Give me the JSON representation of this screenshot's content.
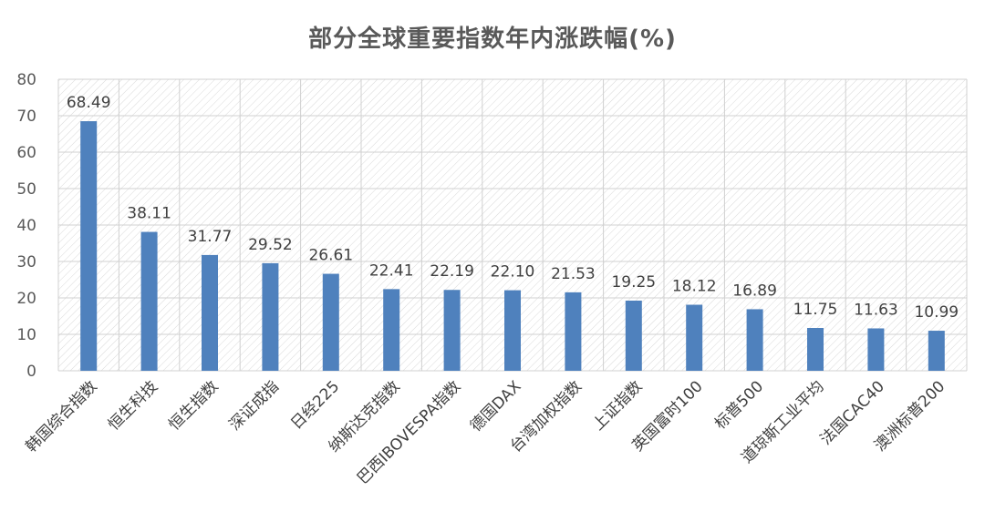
{
  "chart_data": {
    "type": "bar",
    "title": "部分全球重要指数年内涨跌幅(%)",
    "xlabel": "",
    "ylabel": "",
    "ylim": [
      0,
      80
    ],
    "yticks": [
      0,
      10,
      20,
      30,
      40,
      50,
      60,
      70,
      80
    ],
    "grid": true,
    "legend": "none",
    "bar_color": "#4f81bd",
    "categories": [
      "韩国综合指数",
      "恒生科技",
      "恒生指数",
      "深证成指",
      "日经225",
      "纳斯达克指数",
      "巴西IBOVESPA指数",
      "德国DAX",
      "台湾加权指数",
      "上证指数",
      "英国富时100",
      "标普500",
      "道琼斯工业平均",
      "法国CAC40",
      "澳洲标普200"
    ],
    "values": [
      68.49,
      38.11,
      31.77,
      29.52,
      26.61,
      22.41,
      22.19,
      22.1,
      21.53,
      19.25,
      18.12,
      16.89,
      11.75,
      11.63,
      10.99
    ],
    "value_labels": [
      "68.49",
      "38.11",
      "31.77",
      "29.52",
      "26.61",
      "22.41",
      "22.19",
      "22.10",
      "21.53",
      "19.25",
      "18.12",
      "16.89",
      "11.75",
      "11.63",
      "10.99"
    ]
  }
}
